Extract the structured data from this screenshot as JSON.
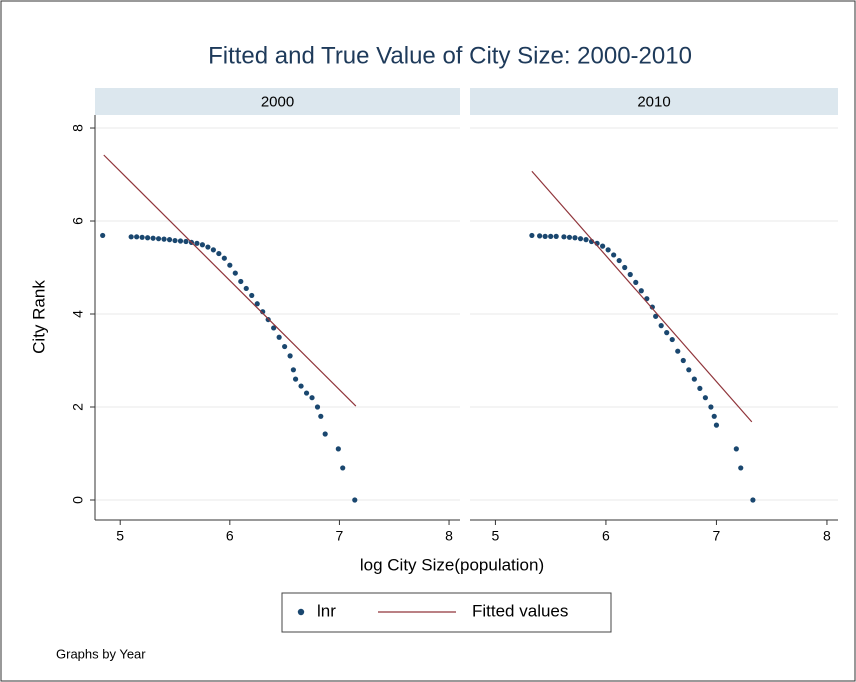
{
  "title": "Fitted and True Value of City Size: 2000-2010",
  "xlabel": "log City Size(population)",
  "ylabel": "City Rank",
  "note": "Graphs by Year",
  "legend": "bottom",
  "chart_data": [
    {
      "type": "scatter",
      "title": "2000",
      "xlim": [
        4.77,
        8.1
      ],
      "ylim": [
        -0.43,
        8.28
      ],
      "xticks": [
        5,
        6,
        7,
        8
      ],
      "yticks": [
        0,
        2,
        4,
        6,
        8
      ],
      "grid": true,
      "series": [
        {
          "name": "lnr",
          "color": "#1a476f",
          "type": "scatter",
          "x": [
            4.84,
            5.1,
            5.15,
            5.2,
            5.25,
            5.3,
            5.35,
            5.4,
            5.45,
            5.5,
            5.55,
            5.6,
            5.65,
            5.7,
            5.75,
            5.8,
            5.85,
            5.9,
            5.95,
            6.0,
            6.05,
            6.1,
            6.15,
            6.2,
            6.25,
            6.3,
            6.35,
            6.4,
            6.45,
            6.5,
            6.55,
            6.58,
            6.6,
            6.65,
            6.7,
            6.75,
            6.8,
            6.83,
            6.87,
            6.99,
            7.03,
            7.14
          ],
          "values": [
            5.69,
            5.66,
            5.66,
            5.65,
            5.64,
            5.63,
            5.62,
            5.61,
            5.6,
            5.58,
            5.57,
            5.56,
            5.54,
            5.52,
            5.49,
            5.44,
            5.38,
            5.3,
            5.2,
            5.05,
            4.88,
            4.7,
            4.55,
            4.4,
            4.22,
            4.05,
            3.88,
            3.7,
            3.5,
            3.3,
            3.1,
            2.8,
            2.6,
            2.45,
            2.3,
            2.2,
            2.0,
            1.8,
            1.42,
            1.1,
            0.69,
            0
          ]
        },
        {
          "name": "Fitted values",
          "color": "#90353b",
          "type": "line",
          "x": [
            4.85,
            7.15
          ],
          "values": [
            7.42,
            2.02
          ]
        }
      ]
    },
    {
      "type": "scatter",
      "title": "2010",
      "xlim": [
        4.77,
        8.1
      ],
      "ylim": [
        -0.43,
        8.28
      ],
      "xticks": [
        5,
        6,
        7,
        8
      ],
      "yticks": [
        0,
        2,
        4,
        6,
        8
      ],
      "grid": true,
      "series": [
        {
          "name": "lnr",
          "color": "#1a476f",
          "type": "scatter",
          "x": [
            5.33,
            5.4,
            5.45,
            5.5,
            5.55,
            5.62,
            5.67,
            5.72,
            5.77,
            5.82,
            5.87,
            5.92,
            5.97,
            6.02,
            6.07,
            6.12,
            6.17,
            6.22,
            6.27,
            6.32,
            6.37,
            6.42,
            6.45,
            6.5,
            6.55,
            6.6,
            6.65,
            6.7,
            6.75,
            6.8,
            6.85,
            6.9,
            6.95,
            6.98,
            7.0,
            7.18,
            7.22,
            7.33
          ],
          "values": [
            5.69,
            5.68,
            5.67,
            5.67,
            5.67,
            5.66,
            5.65,
            5.64,
            5.62,
            5.6,
            5.56,
            5.52,
            5.46,
            5.38,
            5.27,
            5.15,
            5.0,
            4.85,
            4.68,
            4.5,
            4.33,
            4.15,
            3.95,
            3.75,
            3.6,
            3.45,
            3.2,
            3.0,
            2.8,
            2.6,
            2.4,
            2.2,
            2.0,
            1.8,
            1.61,
            1.1,
            0.69,
            0
          ]
        },
        {
          "name": "Fitted values",
          "color": "#90353b",
          "type": "line",
          "x": [
            5.33,
            7.32
          ],
          "values": [
            7.07,
            1.68
          ]
        }
      ]
    }
  ]
}
